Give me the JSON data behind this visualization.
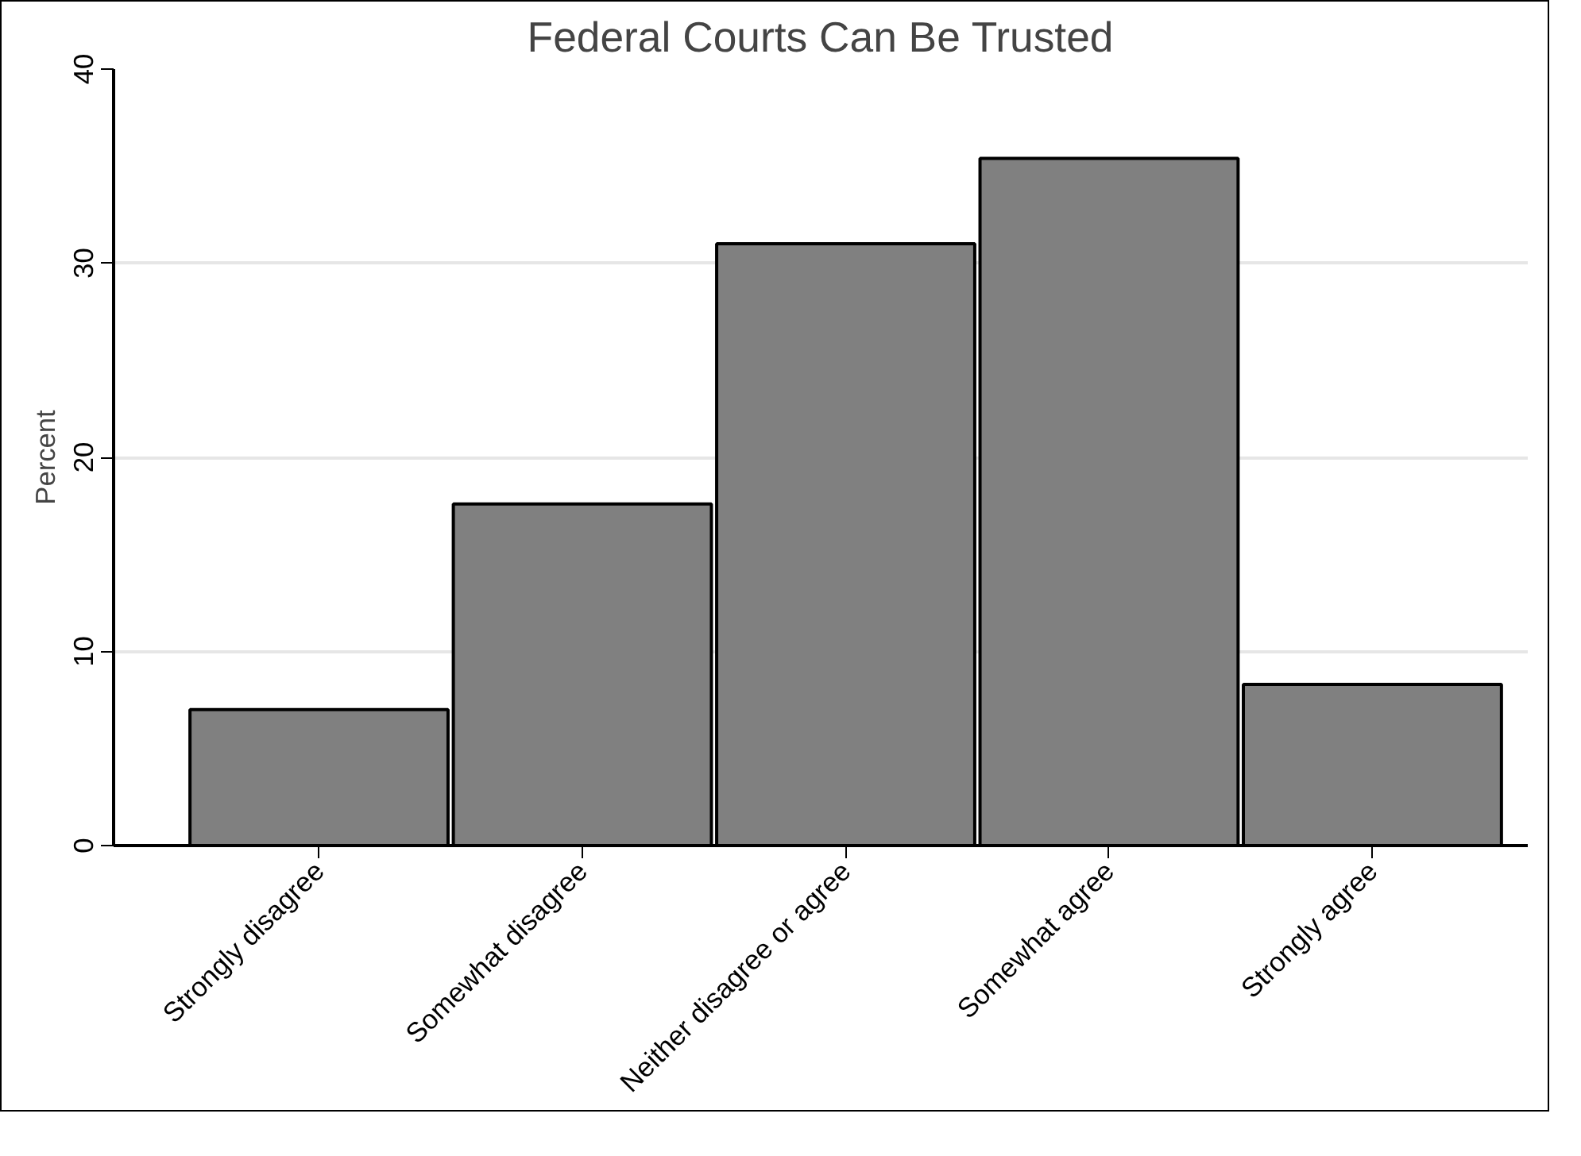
{
  "chart_data": {
    "type": "bar",
    "title": "Federal Courts Can Be Trusted",
    "ylabel": "Percent",
    "categories": [
      "Strongly disagree",
      "Somewhat disagree",
      "Neither disagree or agree",
      "Somewhat agree",
      "Strongly agree"
    ],
    "values": [
      7.0,
      17.6,
      31.0,
      35.4,
      8.3
    ],
    "color": "#808080",
    "ylim": [
      0,
      40
    ],
    "yticks": [
      0,
      10,
      20,
      30,
      40
    ],
    "grid": "y"
  }
}
